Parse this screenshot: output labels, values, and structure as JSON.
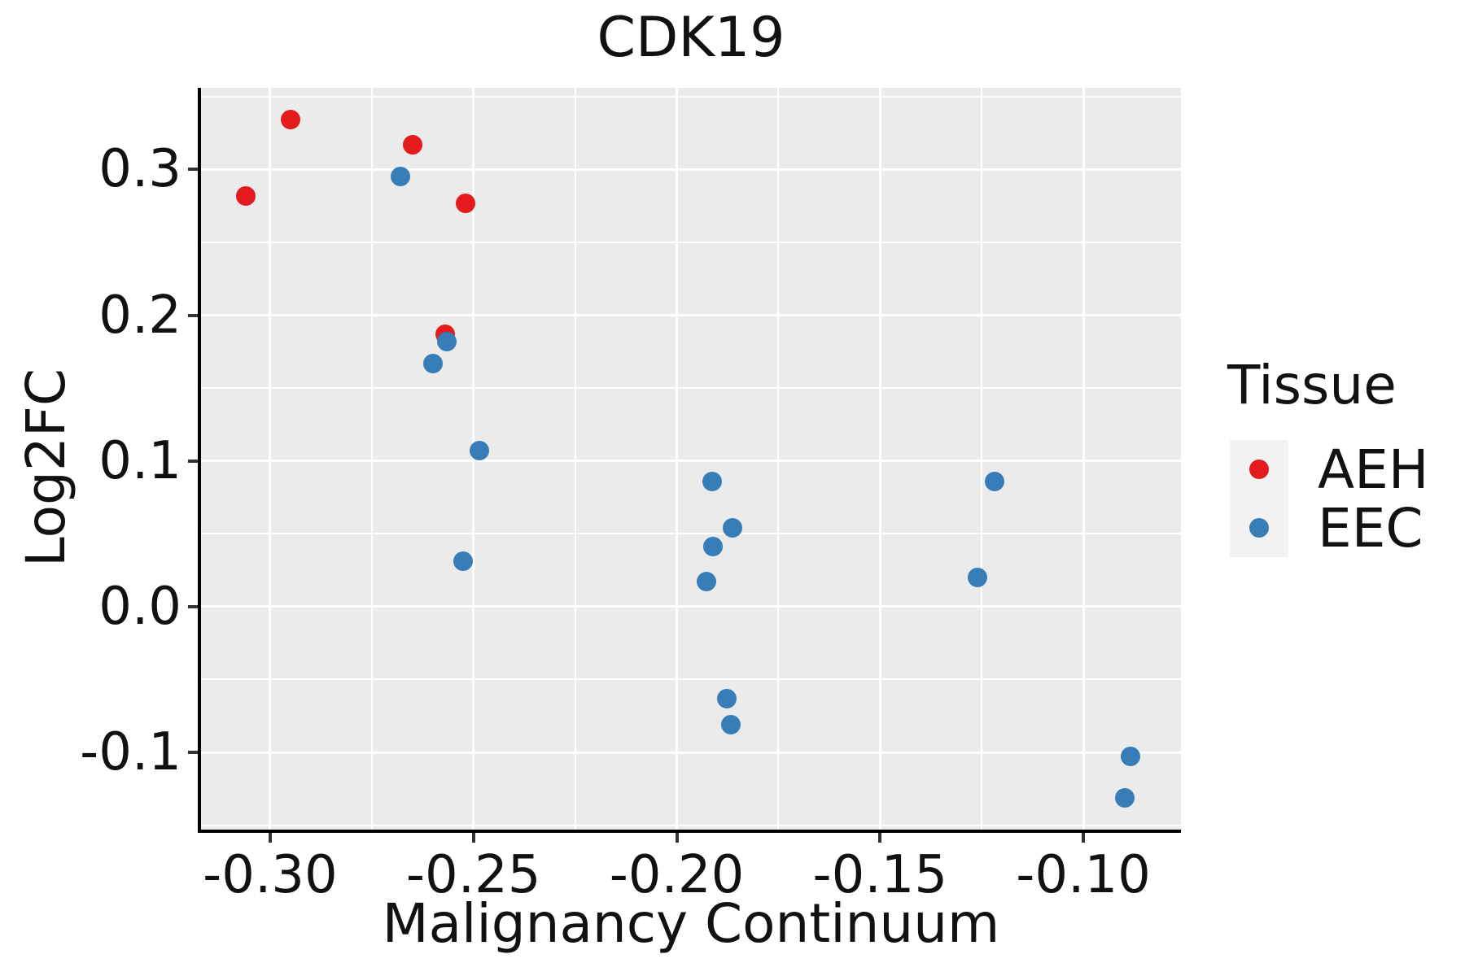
{
  "title": "CDK19",
  "axes": {
    "xlabel": "Malignancy Continuum",
    "ylabel": "Log2FC"
  },
  "legend": {
    "title": "Tissue",
    "entries": [
      {
        "label": "AEH",
        "color": "#E41A1C"
      },
      {
        "label": "EEC",
        "color": "#377EB8"
      }
    ]
  },
  "colors": {
    "figure_background": "#FFFFFF",
    "panel_background": "#EBEBEB",
    "gridline": "#FFFFFF",
    "axis_line": "#000000",
    "tick_mark": "#333333",
    "text": "#111111",
    "legend_key_background": "#F2F2F2",
    "aeh": "#E41A1C",
    "eec": "#377EB8"
  },
  "chart_data": {
    "type": "scatter",
    "title": "CDK19",
    "xlabel": "Malignancy Continuum",
    "ylabel": "Log2FC",
    "xlim": [
      -0.317,
      -0.076
    ],
    "ylim": [
      -0.153,
      0.356
    ],
    "grid": "white major and minor gridlines on gray panel",
    "legend_position": "right",
    "x_ticks": {
      "values": [
        -0.3,
        -0.25,
        -0.2,
        -0.15,
        -0.1
      ],
      "labels": [
        "-0.30",
        "-0.25",
        "-0.20",
        "-0.15",
        "-0.10"
      ]
    },
    "y_ticks": {
      "values": [
        0.3,
        0.2,
        0.1,
        0.0,
        -0.1
      ],
      "labels": [
        "0.3",
        "0.2",
        "0.1",
        "0.0",
        "-0.1"
      ]
    },
    "x_minor_ticks": [
      -0.275,
      -0.225,
      -0.175,
      -0.125
    ],
    "y_minor_ticks": [
      0.35,
      0.25,
      0.15,
      0.05,
      -0.05,
      -0.15
    ],
    "series": [
      {
        "name": "AEH",
        "color": "#E41A1C",
        "points": [
          [
            -0.306,
            0.282
          ],
          [
            -0.295,
            0.334
          ],
          [
            -0.265,
            0.317
          ],
          [
            -0.257,
            0.187
          ],
          [
            -0.252,
            0.277
          ]
        ]
      },
      {
        "name": "EEC",
        "color": "#377EB8",
        "points": [
          [
            -0.268,
            0.295
          ],
          [
            -0.2565,
            0.182
          ],
          [
            -0.26,
            0.167
          ],
          [
            -0.2485,
            0.107
          ],
          [
            -0.2525,
            0.031
          ],
          [
            -0.1912,
            0.086
          ],
          [
            -0.1862,
            0.054
          ],
          [
            -0.191,
            0.041
          ],
          [
            -0.1926,
            0.017
          ],
          [
            -0.1876,
            -0.063
          ],
          [
            -0.1866,
            -0.081
          ],
          [
            -0.1218,
            0.086
          ],
          [
            -0.126,
            0.02
          ],
          [
            -0.0884,
            -0.103
          ],
          [
            -0.0898,
            -0.131
          ]
        ]
      }
    ]
  }
}
